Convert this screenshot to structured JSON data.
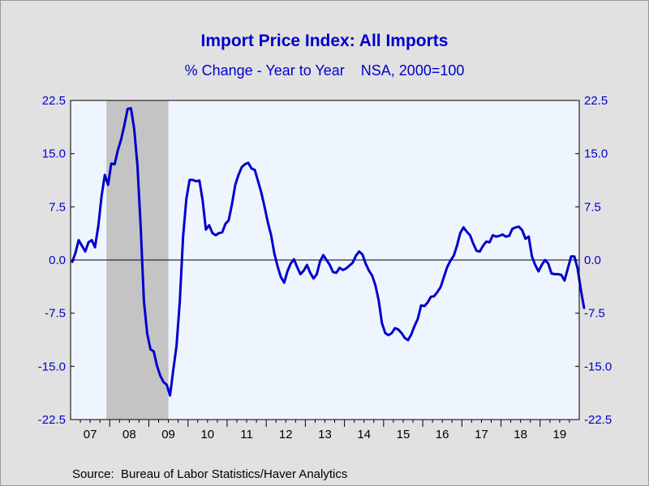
{
  "header": {
    "title": "Import Price Index: All Imports",
    "subtitle_left": "% Change - Year to Year",
    "subtitle_right": "NSA, 2000=100"
  },
  "footer": {
    "source": "Source:  Bureau of Labor Statistics/Haver Analytics"
  },
  "colors": {
    "background": "#e1e1e1",
    "plot_background": "#eef5fe",
    "line": "#0000cc",
    "recession_shade": "#c4c4c4",
    "text_blue": "#0000cc"
  },
  "chart_data": {
    "type": "line",
    "title": "Import Price Index: All Imports",
    "subtitle": "% Change - Year to Year    NSA, 2000=100",
    "xlabel": "",
    "ylabel": "",
    "ylim": [
      -22.5,
      22.5
    ],
    "yticks": [
      22.5,
      15.0,
      7.5,
      0.0,
      -7.5,
      -15.0,
      -22.5
    ],
    "ytick_labels": [
      "22.5",
      "15.0",
      "7.5",
      "0.0",
      "-7.5",
      "-15.0",
      "-22.5"
    ],
    "xlim": [
      "2007-01",
      "2019-12"
    ],
    "xtick_labels": [
      "07",
      "08",
      "09",
      "10",
      "11",
      "12",
      "13",
      "14",
      "15",
      "16",
      "17",
      "18",
      "19"
    ],
    "right_axis_mirrors_left": true,
    "grid": false,
    "zero_line": true,
    "shaded_periods": [
      {
        "start": "2007-12",
        "end": "2009-06",
        "label": "recession"
      }
    ],
    "series": [
      {
        "values": [
          {
            "x": "2007-01",
            "y": -0.3
          },
          {
            "x": "2007-02",
            "y": 1.0
          },
          {
            "x": "2007-03",
            "y": 2.8
          },
          {
            "x": "2007-04",
            "y": 2.0
          },
          {
            "x": "2007-05",
            "y": 1.2
          },
          {
            "x": "2007-06",
            "y": 2.5
          },
          {
            "x": "2007-07",
            "y": 2.8
          },
          {
            "x": "2007-08",
            "y": 1.8
          },
          {
            "x": "2007-09",
            "y": 4.8
          },
          {
            "x": "2007-10",
            "y": 9.0
          },
          {
            "x": "2007-11",
            "y": 12.0
          },
          {
            "x": "2007-12",
            "y": 10.6
          },
          {
            "x": "2008-01",
            "y": 13.6
          },
          {
            "x": "2008-02",
            "y": 13.5
          },
          {
            "x": "2008-03",
            "y": 15.5
          },
          {
            "x": "2008-04",
            "y": 17.0
          },
          {
            "x": "2008-05",
            "y": 19.0
          },
          {
            "x": "2008-06",
            "y": 21.3
          },
          {
            "x": "2008-07",
            "y": 21.4
          },
          {
            "x": "2008-08",
            "y": 18.5
          },
          {
            "x": "2008-09",
            "y": 13.4
          },
          {
            "x": "2008-10",
            "y": 4.7
          },
          {
            "x": "2008-11",
            "y": -5.8
          },
          {
            "x": "2008-12",
            "y": -10.4
          },
          {
            "x": "2009-01",
            "y": -12.6
          },
          {
            "x": "2009-02",
            "y": -12.9
          },
          {
            "x": "2009-03",
            "y": -14.9
          },
          {
            "x": "2009-04",
            "y": -16.3
          },
          {
            "x": "2009-05",
            "y": -17.2
          },
          {
            "x": "2009-06",
            "y": -17.6
          },
          {
            "x": "2009-07",
            "y": -19.1
          },
          {
            "x": "2009-08",
            "y": -15.5
          },
          {
            "x": "2009-09",
            "y": -12.1
          },
          {
            "x": "2009-10",
            "y": -5.9
          },
          {
            "x": "2009-11",
            "y": 3.3
          },
          {
            "x": "2009-12",
            "y": 8.6
          },
          {
            "x": "2010-01",
            "y": 11.3
          },
          {
            "x": "2010-02",
            "y": 11.3
          },
          {
            "x": "2010-03",
            "y": 11.1
          },
          {
            "x": "2010-04",
            "y": 11.2
          },
          {
            "x": "2010-05",
            "y": 8.4
          },
          {
            "x": "2010-06",
            "y": 4.3
          },
          {
            "x": "2010-07",
            "y": 4.9
          },
          {
            "x": "2010-08",
            "y": 3.8
          },
          {
            "x": "2010-09",
            "y": 3.5
          },
          {
            "x": "2010-10",
            "y": 3.8
          },
          {
            "x": "2010-11",
            "y": 3.9
          },
          {
            "x": "2010-12",
            "y": 5.1
          },
          {
            "x": "2011-01",
            "y": 5.6
          },
          {
            "x": "2011-02",
            "y": 7.9
          },
          {
            "x": "2011-03",
            "y": 10.6
          },
          {
            "x": "2011-04",
            "y": 12.0
          },
          {
            "x": "2011-05",
            "y": 13.1
          },
          {
            "x": "2011-06",
            "y": 13.5
          },
          {
            "x": "2011-07",
            "y": 13.7
          },
          {
            "x": "2011-08",
            "y": 12.9
          },
          {
            "x": "2011-09",
            "y": 12.7
          },
          {
            "x": "2011-10",
            "y": 11.1
          },
          {
            "x": "2011-11",
            "y": 9.5
          },
          {
            "x": "2011-12",
            "y": 7.5
          },
          {
            "x": "2012-01",
            "y": 5.3
          },
          {
            "x": "2012-02",
            "y": 3.5
          },
          {
            "x": "2012-03",
            "y": 0.9
          },
          {
            "x": "2012-04",
            "y": -0.9
          },
          {
            "x": "2012-05",
            "y": -2.4
          },
          {
            "x": "2012-06",
            "y": -3.2
          },
          {
            "x": "2012-07",
            "y": -1.6
          },
          {
            "x": "2012-08",
            "y": -0.5
          },
          {
            "x": "2012-09",
            "y": 0.1
          },
          {
            "x": "2012-10",
            "y": -1.0
          },
          {
            "x": "2012-11",
            "y": -2.0
          },
          {
            "x": "2012-12",
            "y": -1.5
          },
          {
            "x": "2013-01",
            "y": -0.7
          },
          {
            "x": "2013-02",
            "y": -1.8
          },
          {
            "x": "2013-03",
            "y": -2.6
          },
          {
            "x": "2013-04",
            "y": -2.0
          },
          {
            "x": "2013-05",
            "y": -0.2
          },
          {
            "x": "2013-06",
            "y": 0.7
          },
          {
            "x": "2013-07",
            "y": 0.0
          },
          {
            "x": "2013-08",
            "y": -0.7
          },
          {
            "x": "2013-09",
            "y": -1.7
          },
          {
            "x": "2013-10",
            "y": -1.8
          },
          {
            "x": "2013-11",
            "y": -1.1
          },
          {
            "x": "2013-12",
            "y": -1.4
          },
          {
            "x": "2014-01",
            "y": -1.2
          },
          {
            "x": "2014-02",
            "y": -0.8
          },
          {
            "x": "2014-03",
            "y": -0.4
          },
          {
            "x": "2014-04",
            "y": 0.6
          },
          {
            "x": "2014-05",
            "y": 1.2
          },
          {
            "x": "2014-06",
            "y": 0.8
          },
          {
            "x": "2014-07",
            "y": -0.5
          },
          {
            "x": "2014-08",
            "y": -1.5
          },
          {
            "x": "2014-09",
            "y": -2.2
          },
          {
            "x": "2014-10",
            "y": -3.6
          },
          {
            "x": "2014-11",
            "y": -5.7
          },
          {
            "x": "2014-12",
            "y": -8.9
          },
          {
            "x": "2015-01",
            "y": -10.3
          },
          {
            "x": "2015-02",
            "y": -10.6
          },
          {
            "x": "2015-03",
            "y": -10.3
          },
          {
            "x": "2015-04",
            "y": -9.6
          },
          {
            "x": "2015-05",
            "y": -9.8
          },
          {
            "x": "2015-06",
            "y": -10.3
          },
          {
            "x": "2015-07",
            "y": -11.0
          },
          {
            "x": "2015-08",
            "y": -11.3
          },
          {
            "x": "2015-09",
            "y": -10.5
          },
          {
            "x": "2015-10",
            "y": -9.3
          },
          {
            "x": "2015-11",
            "y": -8.3
          },
          {
            "x": "2015-12",
            "y": -6.4
          },
          {
            "x": "2016-01",
            "y": -6.5
          },
          {
            "x": "2016-02",
            "y": -6.0
          },
          {
            "x": "2016-03",
            "y": -5.2
          },
          {
            "x": "2016-04",
            "y": -5.1
          },
          {
            "x": "2016-05",
            "y": -4.5
          },
          {
            "x": "2016-06",
            "y": -3.8
          },
          {
            "x": "2016-07",
            "y": -2.4
          },
          {
            "x": "2016-08",
            "y": -1.0
          },
          {
            "x": "2016-09",
            "y": -0.1
          },
          {
            "x": "2016-10",
            "y": 0.6
          },
          {
            "x": "2016-11",
            "y": 2.0
          },
          {
            "x": "2016-12",
            "y": 3.8
          },
          {
            "x": "2017-01",
            "y": 4.6
          },
          {
            "x": "2017-02",
            "y": 4.0
          },
          {
            "x": "2017-03",
            "y": 3.5
          },
          {
            "x": "2017-04",
            "y": 2.3
          },
          {
            "x": "2017-05",
            "y": 1.3
          },
          {
            "x": "2017-06",
            "y": 1.2
          },
          {
            "x": "2017-07",
            "y": 2.0
          },
          {
            "x": "2017-08",
            "y": 2.6
          },
          {
            "x": "2017-09",
            "y": 2.5
          },
          {
            "x": "2017-10",
            "y": 3.5
          },
          {
            "x": "2017-11",
            "y": 3.3
          },
          {
            "x": "2017-12",
            "y": 3.4
          },
          {
            "x": "2018-01",
            "y": 3.6
          },
          {
            "x": "2018-02",
            "y": 3.3
          },
          {
            "x": "2018-03",
            "y": 3.4
          },
          {
            "x": "2018-04",
            "y": 4.4
          },
          {
            "x": "2018-05",
            "y": 4.6
          },
          {
            "x": "2018-06",
            "y": 4.7
          },
          {
            "x": "2018-07",
            "y": 4.2
          },
          {
            "x": "2018-08",
            "y": 3.0
          },
          {
            "x": "2018-09",
            "y": 3.3
          },
          {
            "x": "2018-10",
            "y": 0.5
          },
          {
            "x": "2018-11",
            "y": -0.7
          },
          {
            "x": "2018-12",
            "y": -1.6
          },
          {
            "x": "2019-01",
            "y": -0.7
          },
          {
            "x": "2019-02",
            "y": 0.0
          },
          {
            "x": "2019-03",
            "y": -0.5
          },
          {
            "x": "2019-04",
            "y": -1.9
          },
          {
            "x": "2019-05",
            "y": -2.0
          },
          {
            "x": "2019-06",
            "y": -2.0
          },
          {
            "x": "2019-07",
            "y": -2.1
          },
          {
            "x": "2019-08",
            "y": -2.9
          },
          {
            "x": "2019-09",
            "y": -1.2
          },
          {
            "x": "2019-10",
            "y": 0.5
          },
          {
            "x": "2019-11",
            "y": 0.5
          },
          {
            "x": "2019-12",
            "y": -1.2
          },
          {
            "x": "2020-01",
            "y": -4.2
          },
          {
            "x": "2020-02",
            "y": -6.8
          }
        ]
      }
    ]
  }
}
